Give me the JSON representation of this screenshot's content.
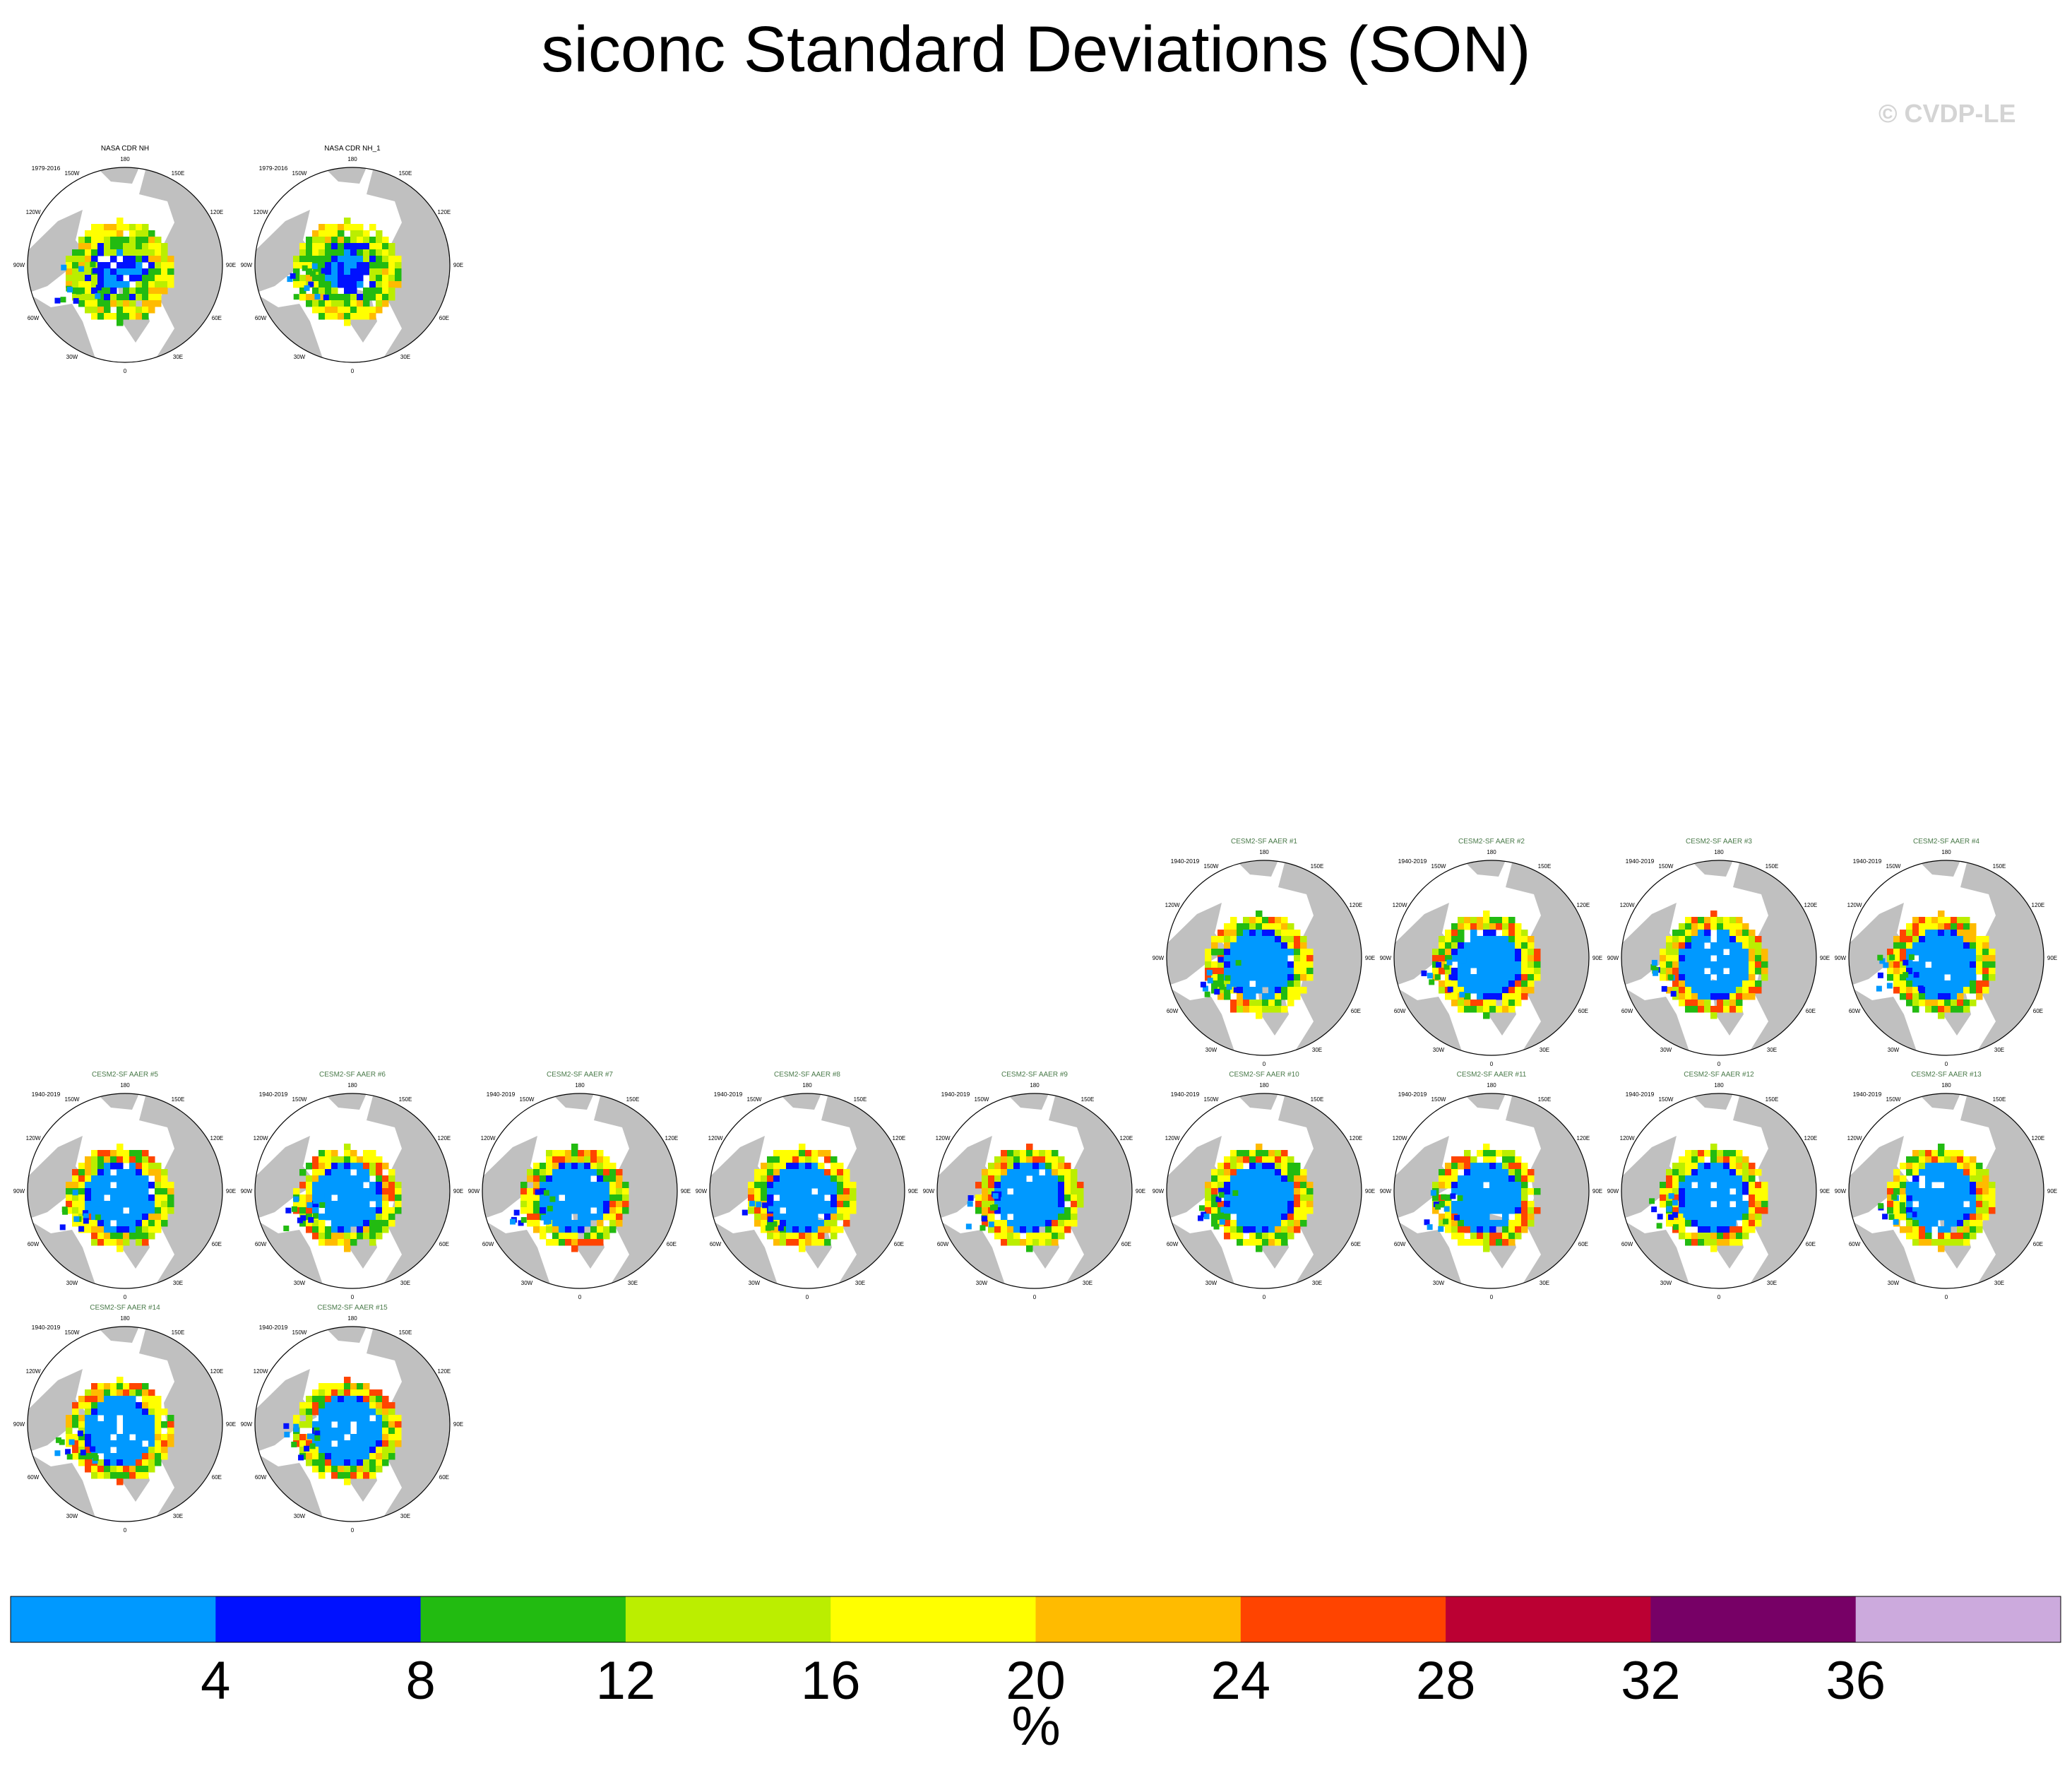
{
  "title": "siconc Standard Deviations (SON)",
  "credit": "© CVDP-LE",
  "panels": [
    {
      "title": "NASA CDR NH",
      "period": "1979-2016",
      "style": "obs"
    },
    {
      "title": "NASA CDR NH_1",
      "period": "1979-2016",
      "style": "obs"
    },
    {
      "title": "CESM2-SF AAER #1",
      "period": "1940-2019",
      "style": "model"
    },
    {
      "title": "CESM2-SF AAER #2",
      "period": "1940-2019",
      "style": "model"
    },
    {
      "title": "CESM2-SF AAER #3",
      "period": "1940-2019",
      "style": "model"
    },
    {
      "title": "CESM2-SF AAER #4",
      "period": "1940-2019",
      "style": "model"
    },
    {
      "title": "CESM2-SF AAER #5",
      "period": "1940-2019",
      "style": "model"
    },
    {
      "title": "CESM2-SF AAER #6",
      "period": "1940-2019",
      "style": "model"
    },
    {
      "title": "CESM2-SF AAER #7",
      "period": "1940-2019",
      "style": "model"
    },
    {
      "title": "CESM2-SF AAER #8",
      "period": "1940-2019",
      "style": "model"
    },
    {
      "title": "CESM2-SF AAER #9",
      "period": "1940-2019",
      "style": "model"
    },
    {
      "title": "CESM2-SF AAER #10",
      "period": "1940-2019",
      "style": "model"
    },
    {
      "title": "CESM2-SF AAER #11",
      "period": "1940-2019",
      "style": "model"
    },
    {
      "title": "CESM2-SF AAER #12",
      "period": "1940-2019",
      "style": "model"
    },
    {
      "title": "CESM2-SF AAER #13",
      "period": "1940-2019",
      "style": "model"
    },
    {
      "title": "CESM2-SF AAER #14",
      "period": "1940-2019",
      "style": "model"
    },
    {
      "title": "CESM2-SF AAER #15",
      "period": "1940-2019",
      "style": "model"
    }
  ],
  "lon_labels": [
    "180",
    "150E",
    "120E",
    "90E",
    "60E",
    "30E",
    "0",
    "30W",
    "60W",
    "90W",
    "120W",
    "150W"
  ],
  "colorbar": {
    "colors": [
      "#0099ff",
      "#0011ff",
      "#22bb11",
      "#bbee00",
      "#ffff00",
      "#ffbb00",
      "#ff4400",
      "#bb0033",
      "#770066",
      "#ccaadd"
    ],
    "ticks": [
      "4",
      "8",
      "12",
      "16",
      "20",
      "24",
      "28",
      "32",
      "36"
    ],
    "title": "%"
  },
  "map_colors": {
    "land": "#c0c0c0",
    "obs_title": "#000000",
    "model_title": "#4a7a4a"
  }
}
